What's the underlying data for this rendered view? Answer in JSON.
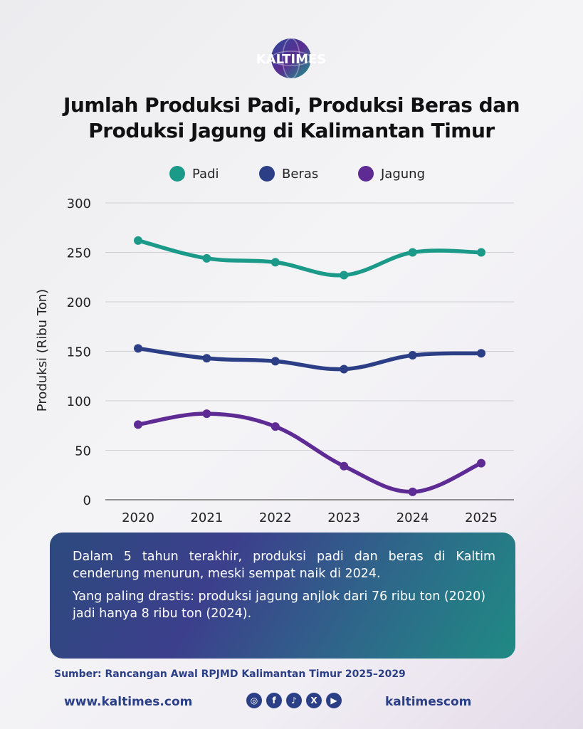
{
  "brand": {
    "name": "KALTIMES"
  },
  "title": {
    "line1": "Jumlah Produksi Padi, Produksi Beras dan",
    "line2": "Produksi Jagung di Kalimantan Timur"
  },
  "chart_data": {
    "type": "line",
    "x": [
      "2020",
      "2021",
      "2022",
      "2023",
      "2024",
      "2025"
    ],
    "series": [
      {
        "name": "Padi",
        "color": "#1b9a8a",
        "values": [
          262,
          244,
          240,
          227,
          250,
          250
        ]
      },
      {
        "name": "Beras",
        "color": "#2c3f86",
        "values": [
          153,
          143,
          140,
          132,
          146,
          148
        ]
      },
      {
        "name": "Jagung",
        "color": "#5e2a94",
        "values": [
          76,
          87,
          74,
          34,
          8,
          37
        ]
      }
    ],
    "ylabel": "Produksi (Ribu Ton)",
    "ylim": [
      0,
      300
    ],
    "yticks": [
      0,
      50,
      100,
      150,
      200,
      250,
      300
    ],
    "grid": true,
    "legend": "top-center",
    "smooth": true
  },
  "summary": {
    "p1": "Dalam 5 tahun terakhir, produksi padi dan beras di Kaltim cenderung menurun, meski sempat naik di 2024.",
    "p2": "Yang paling drastis: produksi jagung anjlok dari 76 ribu ton (2020) jadi hanya 8 ribu ton (2024)."
  },
  "source": "Sumber: Rancangan Awal RPJMD Kalimantan Timur 2025–2029",
  "footer": {
    "website": "www.kaltimes.com",
    "handle": "kaltimescom",
    "socials": [
      {
        "icon": "instagram-icon",
        "glyph": "◎"
      },
      {
        "icon": "facebook-icon",
        "glyph": "f"
      },
      {
        "icon": "tiktok-icon",
        "glyph": "♪"
      },
      {
        "icon": "x-icon",
        "glyph": "X"
      },
      {
        "icon": "youtube-icon",
        "glyph": "▶"
      }
    ]
  }
}
